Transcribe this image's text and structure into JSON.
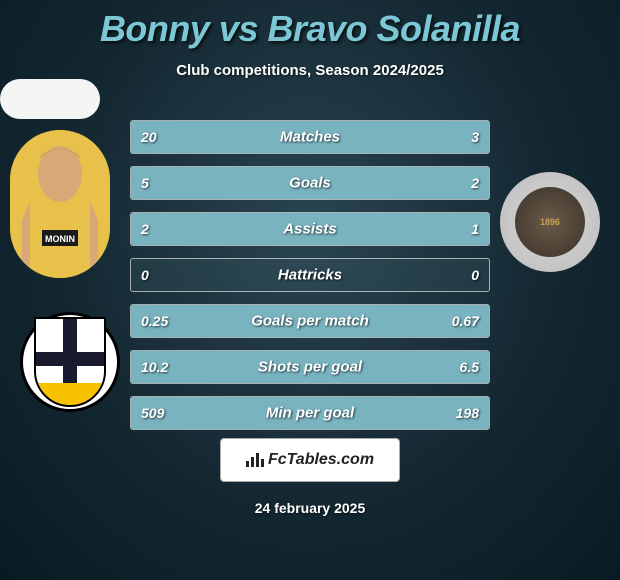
{
  "title": "Bonny vs Bravo Solanilla",
  "subtitle": "Club competitions, Season 2024/2025",
  "date": "24 february 2025",
  "fctables_text": "FcTables.com",
  "colors": {
    "title_color": "#7cc7d6",
    "bar_fill": "#79b3c0",
    "bg_inner": "#2a4550",
    "bg_outer": "#0a1a22"
  },
  "players": {
    "left_name": "Bonny",
    "right_name": "Bravo Solanilla"
  },
  "clubs": {
    "left": {
      "name": "Parma Calcio",
      "badge_text_top": "PARMA CALCIO"
    },
    "right": {
      "name": "Udinese Calcio",
      "year": "1896"
    }
  },
  "stats": [
    {
      "label": "Matches",
      "left_val": "20",
      "right_val": "3",
      "left_pct": 87,
      "right_pct": 13
    },
    {
      "label": "Goals",
      "left_val": "5",
      "right_val": "2",
      "left_pct": 71,
      "right_pct": 29
    },
    {
      "label": "Assists",
      "left_val": "2",
      "right_val": "1",
      "left_pct": 67,
      "right_pct": 33
    },
    {
      "label": "Hattricks",
      "left_val": "0",
      "right_val": "0",
      "left_pct": 0,
      "right_pct": 0
    },
    {
      "label": "Goals per match",
      "left_val": "0.25",
      "right_val": "0.67",
      "left_pct": 27,
      "right_pct": 73
    },
    {
      "label": "Shots per goal",
      "left_val": "10.2",
      "right_val": "6.5",
      "left_pct": 61,
      "right_pct": 39
    },
    {
      "label": "Min per goal",
      "left_val": "509",
      "right_val": "198",
      "left_pct": 72,
      "right_pct": 28
    }
  ]
}
